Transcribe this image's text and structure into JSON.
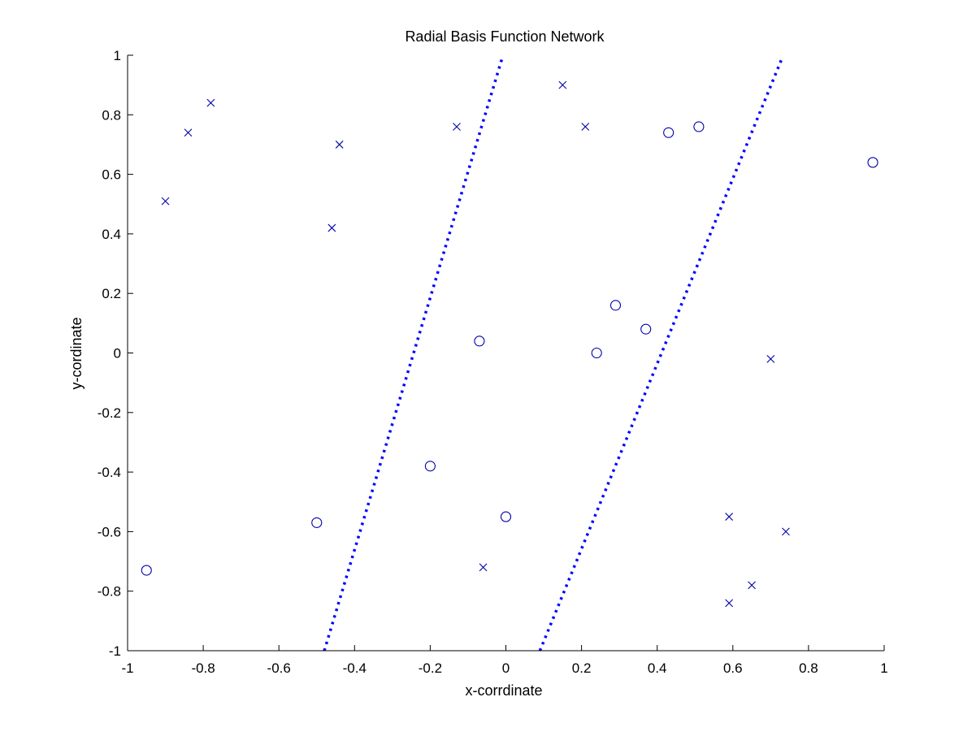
{
  "chart_data": {
    "type": "scatter",
    "title": "Radial Basis Function Network",
    "xlabel": "x-corrdinate",
    "ylabel": "y-cordinate",
    "xlim": [
      -1,
      1
    ],
    "ylim": [
      -1,
      1
    ],
    "xticks": [
      "-1",
      "-0.8",
      "-0.6",
      "-0.4",
      "-0.2",
      "0",
      "0.2",
      "0.4",
      "0.6",
      "0.8",
      "1"
    ],
    "yticks": [
      "-1",
      "-0.8",
      "-0.6",
      "-0.4",
      "-0.2",
      "0",
      "0.2",
      "0.4",
      "0.6",
      "0.8",
      "1"
    ],
    "grid": false,
    "colors": {
      "marker": "#0000aa",
      "boundary": "#0000ff",
      "axis": "#000000"
    },
    "series": [
      {
        "marker": "x",
        "points": [
          [
            -0.9,
            0.51
          ],
          [
            -0.84,
            0.74
          ],
          [
            -0.78,
            0.84
          ],
          [
            -0.44,
            0.7
          ],
          [
            -0.46,
            0.42
          ],
          [
            -0.13,
            0.76
          ],
          [
            0.15,
            0.9
          ],
          [
            0.21,
            0.76
          ],
          [
            0.7,
            -0.02
          ],
          [
            -0.06,
            -0.72
          ],
          [
            0.59,
            -0.55
          ],
          [
            0.74,
            -0.6
          ],
          [
            0.65,
            -0.78
          ],
          [
            0.59,
            -0.84
          ]
        ]
      },
      {
        "marker": "o",
        "points": [
          [
            -0.95,
            -0.73
          ],
          [
            -0.5,
            -0.57
          ],
          [
            -0.2,
            -0.38
          ],
          [
            -0.07,
            0.04
          ],
          [
            0.0,
            -0.55
          ],
          [
            0.24,
            0.0
          ],
          [
            0.29,
            0.16
          ],
          [
            0.37,
            0.08
          ],
          [
            0.43,
            0.74
          ],
          [
            0.51,
            0.76
          ],
          [
            0.97,
            0.64
          ]
        ]
      }
    ],
    "boundaries": [
      {
        "style": "dotted",
        "points": [
          [
            -0.48,
            -1.0
          ],
          [
            -0.01,
            0.99
          ]
        ]
      },
      {
        "style": "dotted",
        "points": [
          [
            0.09,
            -1.0
          ],
          [
            0.73,
            0.99
          ]
        ]
      }
    ]
  }
}
